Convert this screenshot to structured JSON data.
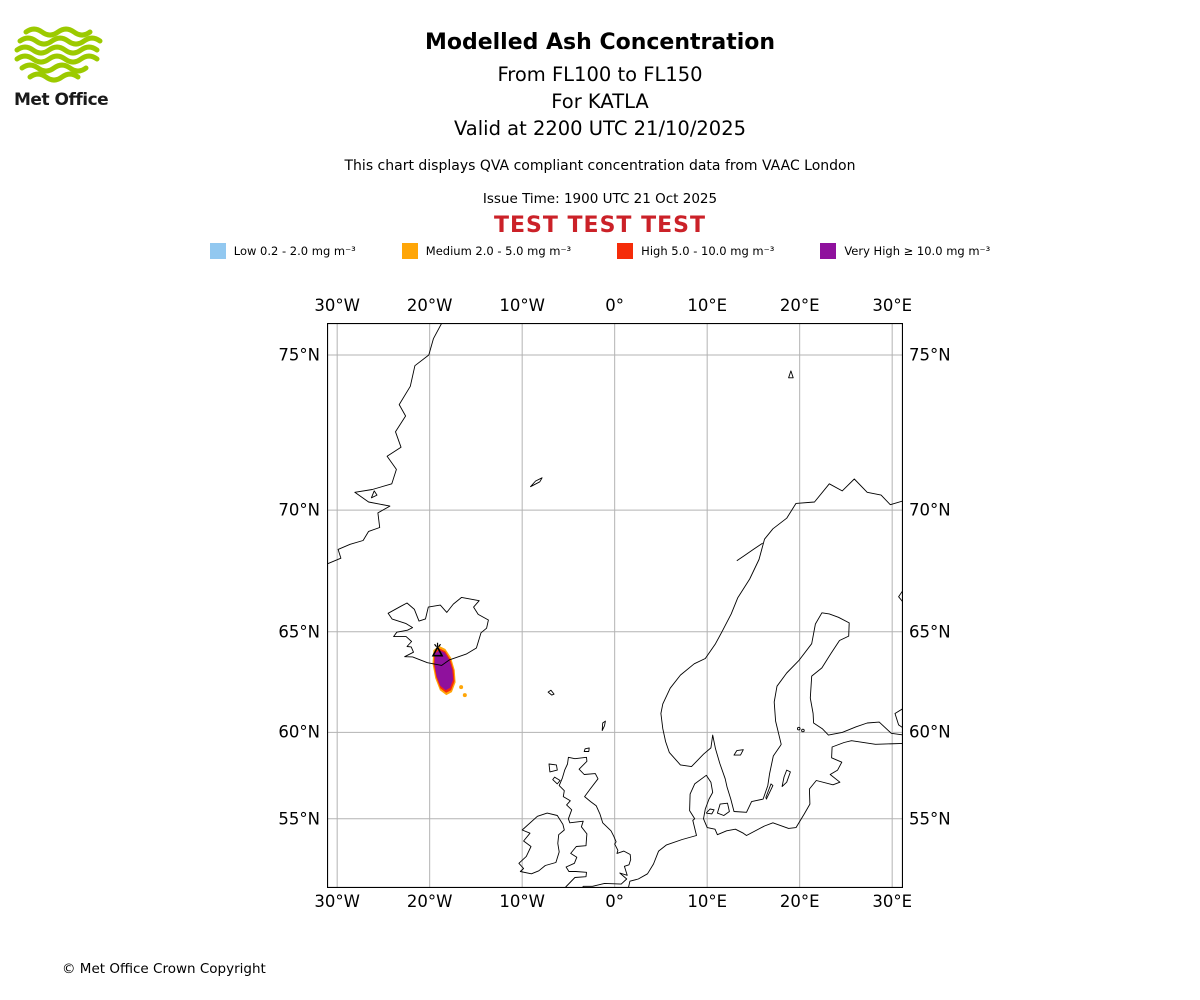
{
  "header": {
    "logo_text": "Met Office",
    "logo_color": "#9cca00",
    "title": "Modelled Ash Concentration",
    "subtitle_flight_levels": "From FL100 to FL150",
    "subtitle_volcano": "For KATLA",
    "subtitle_valid": "Valid at 2200 UTC 21/10/2025",
    "qva_note": "This chart displays QVA compliant concentration data from VAAC London",
    "issue_time": "Issue Time: 1900 UTC 21 Oct 2025",
    "test_banner": "TEST TEST TEST",
    "test_banner_color": "#cb2128"
  },
  "legend": {
    "items": [
      {
        "id": "low",
        "label": "Low 0.2 - 2.0 mg m⁻³",
        "color": "#92c8f0"
      },
      {
        "id": "medium",
        "label": "Medium 2.0 - 5.0 mg m⁻³",
        "color": "#ffa608"
      },
      {
        "id": "high",
        "label": "High 5.0 - 10.0 mg m⁻³",
        "color": "#f52c09"
      },
      {
        "id": "very_high",
        "label": "Very High ≥ 10.0 mg m⁻³",
        "color": "#8f119d"
      }
    ]
  },
  "map": {
    "lon_ticks": [
      "30°W",
      "20°W",
      "10°W",
      "0°",
      "10°E",
      "20°E",
      "30°E"
    ],
    "lon_tick_values": [
      -30,
      -20,
      -10,
      0,
      10,
      20,
      30
    ],
    "lat_ticks": [
      "75°N",
      "70°N",
      "65°N",
      "60°N",
      "55°N"
    ],
    "lat_tick_values": [
      75,
      70,
      65,
      60,
      55
    ],
    "grid_color": "#b3b3b3",
    "volcano": {
      "name": "KATLA",
      "lon": -19.15,
      "lat": 64.05
    },
    "ash_plume": {
      "speck_color": "#ffa608",
      "zones": [
        {
          "level": "medium",
          "color": "#ffa608",
          "points": [
            [
              -19.6,
              64.15
            ],
            [
              -19.0,
              64.35
            ],
            [
              -18.3,
              64.2
            ],
            [
              -17.7,
              63.8
            ],
            [
              -17.3,
              63.2
            ],
            [
              -17.2,
              62.6
            ],
            [
              -17.6,
              62.1
            ],
            [
              -18.2,
              61.95
            ],
            [
              -18.9,
              62.2
            ],
            [
              -19.4,
              62.8
            ],
            [
              -19.7,
              63.5
            ]
          ]
        },
        {
          "level": "high",
          "color": "#f52c09",
          "points": [
            [
              -19.49,
              64.05
            ],
            [
              -18.95,
              64.23
            ],
            [
              -18.32,
              64.1
            ],
            [
              -17.77,
              63.72
            ],
            [
              -17.41,
              63.19
            ],
            [
              -17.32,
              62.65
            ],
            [
              -17.68,
              62.2
            ],
            [
              -18.22,
              62.07
            ],
            [
              -18.85,
              62.3
            ],
            [
              -19.3,
              62.84
            ],
            [
              -19.57,
              63.47
            ]
          ]
        },
        {
          "level": "very_high",
          "color": "#8f119d",
          "points": [
            [
              -19.44,
              63.99
            ],
            [
              -18.95,
              64.15
            ],
            [
              -18.38,
              64.03
            ],
            [
              -17.88,
              63.68
            ],
            [
              -17.55,
              63.2
            ],
            [
              -17.47,
              62.72
            ],
            [
              -17.79,
              62.32
            ],
            [
              -18.27,
              62.2
            ],
            [
              -18.84,
              62.41
            ],
            [
              -19.24,
              62.89
            ],
            [
              -19.47,
              63.45
            ]
          ]
        }
      ],
      "specks": [
        {
          "lon": -16.6,
          "lat": 62.35
        },
        {
          "lon": -16.2,
          "lat": 61.95
        }
      ]
    }
  },
  "footer": {
    "copyright": "© Met Office Crown Copyright"
  }
}
